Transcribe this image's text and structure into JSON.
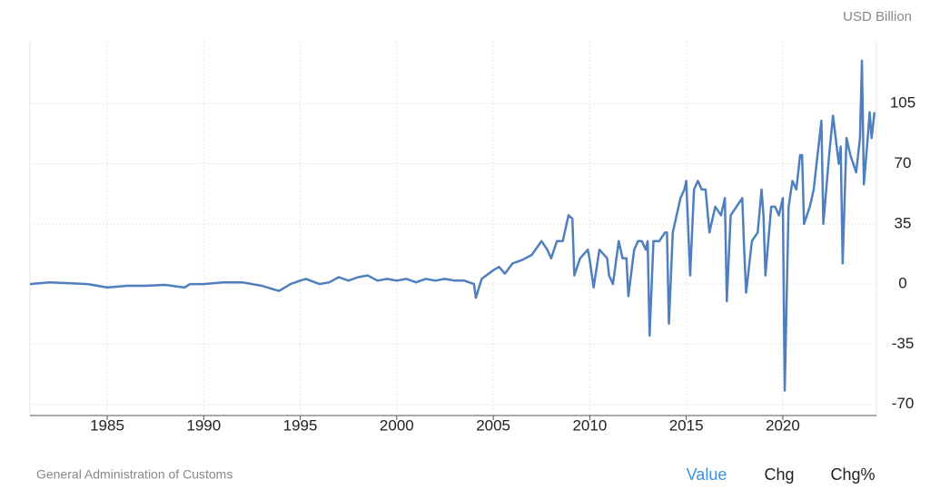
{
  "chart_data": {
    "type": "line",
    "unit_label": "USD Billion",
    "source": "General Administration of Customs",
    "x": [
      1981.0,
      1982.0,
      1983.0,
      1984.0,
      1985.0,
      1986.0,
      1987.0,
      1988.0,
      1989.0,
      1989.3,
      1990.0,
      1991.0,
      1992.0,
      1993.0,
      1993.9,
      1994.5,
      1995.0,
      1995.3,
      1996.0,
      1996.5,
      1997.0,
      1997.5,
      1998.0,
      1998.5,
      1999.0,
      1999.5,
      2000.0,
      2000.5,
      2001.0,
      2001.5,
      2002.0,
      2002.5,
      2003.0,
      2003.5,
      2004.0,
      2004.1,
      2004.4,
      2005.0,
      2005.3,
      2005.6,
      2006.0,
      2006.5,
      2007.0,
      2007.5,
      2007.8,
      2008.0,
      2008.3,
      2008.6,
      2008.9,
      2009.1,
      2009.2,
      2009.5,
      2009.9,
      2010.0,
      2010.2,
      2010.5,
      2010.9,
      2011.0,
      2011.2,
      2011.5,
      2011.7,
      2011.9,
      2012.0,
      2012.3,
      2012.5,
      2012.7,
      2012.9,
      2013.0,
      2013.1,
      2013.3,
      2013.6,
      2013.9,
      2014.0,
      2014.1,
      2014.3,
      2014.5,
      2014.7,
      2014.9,
      2015.0,
      2015.2,
      2015.4,
      2015.6,
      2015.8,
      2016.0,
      2016.2,
      2016.5,
      2016.8,
      2017.0,
      2017.1,
      2017.3,
      2017.6,
      2017.9,
      2018.0,
      2018.1,
      2018.4,
      2018.7,
      2018.9,
      2019.0,
      2019.1,
      2019.4,
      2019.6,
      2019.8,
      2019.9,
      2020.0,
      2020.1,
      2020.3,
      2020.5,
      2020.7,
      2020.9,
      2021.0,
      2021.1,
      2021.4,
      2021.6,
      2021.9,
      2022.0,
      2022.1,
      2022.4,
      2022.6,
      2022.9,
      2023.0,
      2023.1,
      2023.3,
      2023.5,
      2023.8,
      2023.9,
      2024.0,
      2024.1,
      2024.2,
      2024.4,
      2024.5,
      2024.6,
      2024.75
    ],
    "series": [
      {
        "name": "Value",
        "color": "#4f7fbf",
        "values": [
          0,
          1,
          0.5,
          0,
          -2,
          -1,
          -1,
          -0.5,
          -2,
          0,
          0,
          1,
          1,
          -1,
          -4,
          0,
          2,
          3,
          0,
          1,
          4,
          2,
          4,
          5,
          2,
          3,
          2,
          3,
          1,
          3,
          2,
          3,
          2,
          2,
          0,
          -8,
          3,
          8,
          10,
          6,
          12,
          14,
          17,
          25,
          20,
          15,
          25,
          25,
          40,
          38,
          5,
          15,
          20,
          14,
          -2,
          20,
          15,
          5,
          0,
          25,
          15,
          15,
          -7,
          20,
          25,
          25,
          20,
          25,
          -30,
          25,
          25,
          30,
          30,
          -23,
          30,
          40,
          50,
          55,
          60,
          5,
          55,
          60,
          55,
          55,
          30,
          45,
          40,
          50,
          -10,
          40,
          45,
          50,
          20,
          -5,
          25,
          30,
          55,
          40,
          5,
          45,
          45,
          40,
          45,
          50,
          -62,
          45,
          60,
          55,
          75,
          75,
          35,
          45,
          55,
          85,
          95,
          35,
          75,
          98,
          70,
          80,
          12,
          85,
          75,
          65,
          75,
          85,
          130,
          58,
          85,
          100,
          85,
          100
        ]
      }
    ],
    "xlim": [
      1981,
      2024.85
    ],
    "xticks": [
      1985,
      1990,
      1995,
      2000,
      2005,
      2010,
      2015,
      2020
    ],
    "ylim": [
      -76.5,
      141
    ],
    "yticks": [
      -70,
      -35,
      0,
      35,
      70,
      105
    ],
    "grid": true
  },
  "controls": [
    "Value",
    "Chg",
    "Chg%"
  ]
}
